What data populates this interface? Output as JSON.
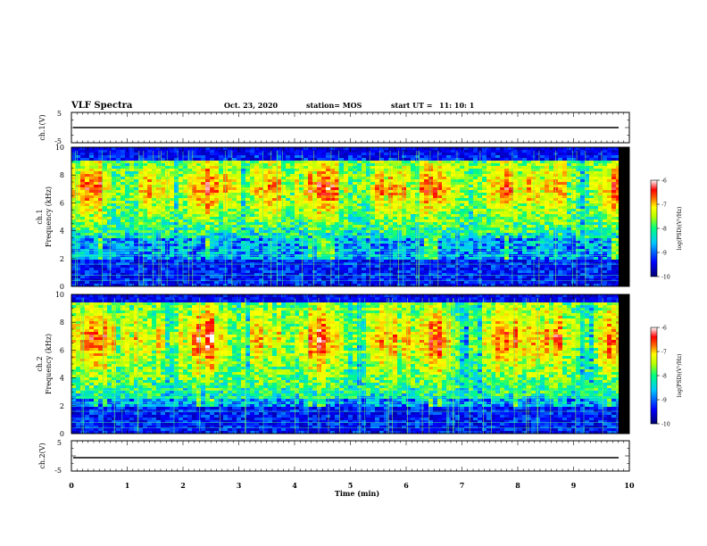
{
  "header": {
    "title": "VLF Spectra",
    "date": "Oct. 23, 2020",
    "station": "station= MOS",
    "start_label": "start  UT  =",
    "start_time": "11: 10: 1"
  },
  "chart_data": {
    "type": "heatmap",
    "title": "VLF Spectra",
    "xlabel": "Time  (min)",
    "xlim": [
      0,
      10
    ],
    "x_ticks": [
      "0",
      "1",
      "2",
      "3",
      "4",
      "5",
      "6",
      "7",
      "8",
      "9",
      "10"
    ],
    "panels": [
      {
        "id": "ch1-voltage",
        "ylabel": "ch.1(V)",
        "ylim": [
          -5,
          5
        ],
        "y_ticks": [
          "5",
          "-5"
        ],
        "type": "line",
        "trace_level": 0
      },
      {
        "id": "ch1-spectrogram",
        "ylabel_top": "ch.1",
        "ylabel": "Frequency  (kHz)",
        "ylim": [
          0,
          10
        ],
        "y_ticks": [
          "0",
          "2",
          "4",
          "6",
          "8",
          "10"
        ],
        "type": "heatmap",
        "band_low_khz": 3.5,
        "band_high_khz": 9.0,
        "colorbar": {
          "label": "log(PSD)(V²/Hz)",
          "ticks": [
            "-6",
            "-7",
            "-8",
            "-9",
            "-10"
          ],
          "range": [
            -10,
            -6
          ]
        }
      },
      {
        "id": "ch2-spectrogram",
        "ylabel_top": "ch.2",
        "ylabel": "Frequency  (kHz)",
        "ylim": [
          0,
          10
        ],
        "y_ticks": [
          "0",
          "2",
          "4",
          "6",
          "8",
          "10"
        ],
        "type": "heatmap",
        "band_low_khz": 2.5,
        "band_high_khz": 9.5,
        "colorbar": {
          "label": "log(PSD)(V²/Hz)",
          "ticks": [
            "-6",
            "-7",
            "-8",
            "-9",
            "-10"
          ],
          "range": [
            -10,
            -6
          ]
        }
      },
      {
        "id": "ch2-voltage",
        "ylabel": "ch.2(V)",
        "ylim": [
          -5,
          5
        ],
        "y_ticks": [
          "5",
          "-5"
        ],
        "type": "line",
        "trace_level": 0
      }
    ],
    "colors": {
      "colormap": [
        "#00007f",
        "#0000ff",
        "#00c8ff",
        "#00ff80",
        "#c8ff00",
        "#ffff00",
        "#ff8000",
        "#ff0000",
        "#ffffff"
      ]
    }
  }
}
